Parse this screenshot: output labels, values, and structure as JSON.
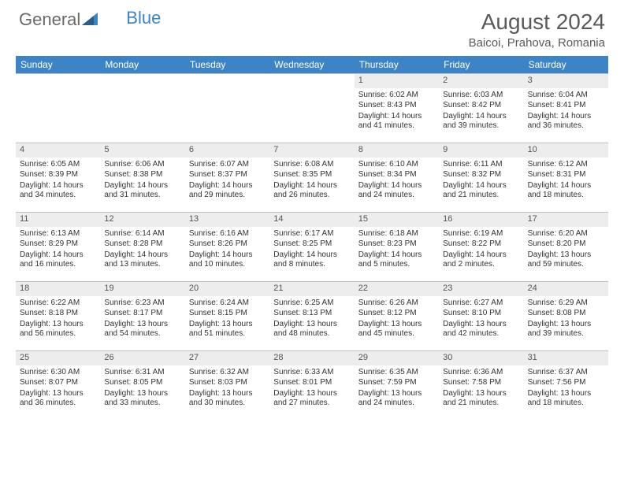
{
  "logo": {
    "word1": "General",
    "word2": "Blue"
  },
  "title": "August 2024",
  "location": "Baicoi, Prahova, Romania",
  "weekday_labels": [
    "Sunday",
    "Monday",
    "Tuesday",
    "Wednesday",
    "Thursday",
    "Friday",
    "Saturday"
  ],
  "colors": {
    "header_bar": "#3d84c6",
    "daynum_bg": "#ededed",
    "text": "#333333",
    "logo_gray": "#6a6a6a",
    "logo_blue": "#3d84c6",
    "border": "#b7c4d0"
  },
  "fonts": {
    "title_size_pt": 21,
    "location_size_pt": 11,
    "weekday_size_pt": 9,
    "cell_size_pt": 7.5
  },
  "first_weekday_index": 4,
  "days": [
    {
      "n": 1,
      "sunrise": "6:02 AM",
      "sunset": "8:43 PM",
      "daylight": "14 hours and 41 minutes."
    },
    {
      "n": 2,
      "sunrise": "6:03 AM",
      "sunset": "8:42 PM",
      "daylight": "14 hours and 39 minutes."
    },
    {
      "n": 3,
      "sunrise": "6:04 AM",
      "sunset": "8:41 PM",
      "daylight": "14 hours and 36 minutes."
    },
    {
      "n": 4,
      "sunrise": "6:05 AM",
      "sunset": "8:39 PM",
      "daylight": "14 hours and 34 minutes."
    },
    {
      "n": 5,
      "sunrise": "6:06 AM",
      "sunset": "8:38 PM",
      "daylight": "14 hours and 31 minutes."
    },
    {
      "n": 6,
      "sunrise": "6:07 AM",
      "sunset": "8:37 PM",
      "daylight": "14 hours and 29 minutes."
    },
    {
      "n": 7,
      "sunrise": "6:08 AM",
      "sunset": "8:35 PM",
      "daylight": "14 hours and 26 minutes."
    },
    {
      "n": 8,
      "sunrise": "6:10 AM",
      "sunset": "8:34 PM",
      "daylight": "14 hours and 24 minutes."
    },
    {
      "n": 9,
      "sunrise": "6:11 AM",
      "sunset": "8:32 PM",
      "daylight": "14 hours and 21 minutes."
    },
    {
      "n": 10,
      "sunrise": "6:12 AM",
      "sunset": "8:31 PM",
      "daylight": "14 hours and 18 minutes."
    },
    {
      "n": 11,
      "sunrise": "6:13 AM",
      "sunset": "8:29 PM",
      "daylight": "14 hours and 16 minutes."
    },
    {
      "n": 12,
      "sunrise": "6:14 AM",
      "sunset": "8:28 PM",
      "daylight": "14 hours and 13 minutes."
    },
    {
      "n": 13,
      "sunrise": "6:16 AM",
      "sunset": "8:26 PM",
      "daylight": "14 hours and 10 minutes."
    },
    {
      "n": 14,
      "sunrise": "6:17 AM",
      "sunset": "8:25 PM",
      "daylight": "14 hours and 8 minutes."
    },
    {
      "n": 15,
      "sunrise": "6:18 AM",
      "sunset": "8:23 PM",
      "daylight": "14 hours and 5 minutes."
    },
    {
      "n": 16,
      "sunrise": "6:19 AM",
      "sunset": "8:22 PM",
      "daylight": "14 hours and 2 minutes."
    },
    {
      "n": 17,
      "sunrise": "6:20 AM",
      "sunset": "8:20 PM",
      "daylight": "13 hours and 59 minutes."
    },
    {
      "n": 18,
      "sunrise": "6:22 AM",
      "sunset": "8:18 PM",
      "daylight": "13 hours and 56 minutes."
    },
    {
      "n": 19,
      "sunrise": "6:23 AM",
      "sunset": "8:17 PM",
      "daylight": "13 hours and 54 minutes."
    },
    {
      "n": 20,
      "sunrise": "6:24 AM",
      "sunset": "8:15 PM",
      "daylight": "13 hours and 51 minutes."
    },
    {
      "n": 21,
      "sunrise": "6:25 AM",
      "sunset": "8:13 PM",
      "daylight": "13 hours and 48 minutes."
    },
    {
      "n": 22,
      "sunrise": "6:26 AM",
      "sunset": "8:12 PM",
      "daylight": "13 hours and 45 minutes."
    },
    {
      "n": 23,
      "sunrise": "6:27 AM",
      "sunset": "8:10 PM",
      "daylight": "13 hours and 42 minutes."
    },
    {
      "n": 24,
      "sunrise": "6:29 AM",
      "sunset": "8:08 PM",
      "daylight": "13 hours and 39 minutes."
    },
    {
      "n": 25,
      "sunrise": "6:30 AM",
      "sunset": "8:07 PM",
      "daylight": "13 hours and 36 minutes."
    },
    {
      "n": 26,
      "sunrise": "6:31 AM",
      "sunset": "8:05 PM",
      "daylight": "13 hours and 33 minutes."
    },
    {
      "n": 27,
      "sunrise": "6:32 AM",
      "sunset": "8:03 PM",
      "daylight": "13 hours and 30 minutes."
    },
    {
      "n": 28,
      "sunrise": "6:33 AM",
      "sunset": "8:01 PM",
      "daylight": "13 hours and 27 minutes."
    },
    {
      "n": 29,
      "sunrise": "6:35 AM",
      "sunset": "7:59 PM",
      "daylight": "13 hours and 24 minutes."
    },
    {
      "n": 30,
      "sunrise": "6:36 AM",
      "sunset": "7:58 PM",
      "daylight": "13 hours and 21 minutes."
    },
    {
      "n": 31,
      "sunrise": "6:37 AM",
      "sunset": "7:56 PM",
      "daylight": "13 hours and 18 minutes."
    }
  ],
  "labels": {
    "sunrise_prefix": "Sunrise: ",
    "sunset_prefix": "Sunset: ",
    "daylight_prefix": "Daylight: "
  }
}
